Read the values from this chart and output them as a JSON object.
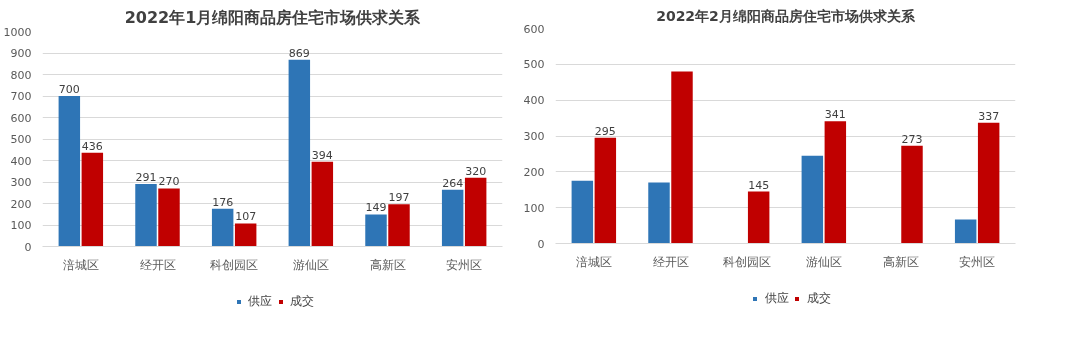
{
  "chart_data": [
    {
      "type": "bar",
      "title": "2022年1月绵阳商品房住宅市场供求关系",
      "categories": [
        "涪城区",
        "经开区",
        "科创园区",
        "游仙区",
        "高新区",
        "安州区"
      ],
      "series": [
        {
          "name": "供应",
          "color": "#2e75b6",
          "values": [
            700,
            291,
            176,
            869,
            149,
            264
          ]
        },
        {
          "name": "成交",
          "color": "#c00000",
          "values": [
            436,
            270,
            107,
            394,
            197,
            320
          ]
        }
      ],
      "ylim": [
        0,
        1000
      ],
      "yticks": [
        0,
        100,
        200,
        300,
        400,
        500,
        600,
        700,
        800,
        900,
        1000
      ],
      "grid": "y",
      "legend": "bottom",
      "data_labels": true
    },
    {
      "type": "bar",
      "title": "2022年2月绵阳商品房住宅市场供求关系",
      "categories": [
        "涪城区",
        "经开区",
        "科创园区",
        "游仙区",
        "高新区",
        "安州区"
      ],
      "series": [
        {
          "name": "供应",
          "color": "#2e75b6",
          "values": [
            175,
            170,
            null,
            245,
            null,
            67
          ]
        },
        {
          "name": "成交",
          "color": "#c00000",
          "values": [
            295,
            480,
            145,
            341,
            273,
            337
          ],
          "value_labels": [
            "295",
            null,
            "145",
            "341",
            "273",
            "337"
          ]
        }
      ],
      "ylim": [
        0,
        600
      ],
      "yticks": [
        0,
        100,
        200,
        300,
        400,
        500,
        600
      ],
      "grid": "y",
      "legend": "bottom"
    }
  ]
}
